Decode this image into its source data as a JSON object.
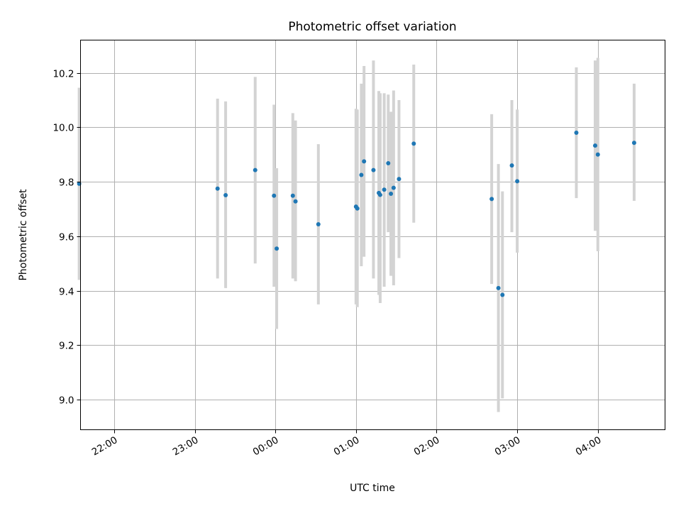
{
  "chart_data": {
    "type": "scatter",
    "title": "Photometric offset variation",
    "xlabel": "UTC time",
    "ylabel": "Photometric offset",
    "x_axis": "time (UTC, hours; values past 24 are after midnight)",
    "xlim": [
      "21:35",
      "04:50"
    ],
    "ylim": [
      8.89,
      10.32
    ],
    "xticks": [
      "22:00",
      "23:00",
      "00:00",
      "01:00",
      "02:00",
      "03:00",
      "04:00"
    ],
    "yticks": [
      "9.0",
      "9.2",
      "9.4",
      "9.6",
      "9.8",
      "10.0",
      "10.2"
    ],
    "grid": true,
    "colors": {
      "points": "#1f77b4",
      "error_bars": "#d3d3d3"
    },
    "points": [
      {
        "x": "21:34",
        "y": 9.793,
        "ylow": 9.44,
        "yhigh": 10.145
      },
      {
        "x": "23:17",
        "y": 9.775,
        "ylow": 9.445,
        "yhigh": 10.105
      },
      {
        "x": "23:23",
        "y": 9.751,
        "ylow": 9.41,
        "yhigh": 10.095
      },
      {
        "x": "23:45",
        "y": 9.843,
        "ylow": 9.5,
        "yhigh": 10.185
      },
      {
        "x": "23:59",
        "y": 9.749,
        "ylow": 9.415,
        "yhigh": 10.083
      },
      {
        "x": "00:01",
        "y": 9.555,
        "ylow": 9.26,
        "yhigh": 9.85
      },
      {
        "x": "00:13",
        "y": 9.749,
        "ylow": 9.445,
        "yhigh": 10.052
      },
      {
        "x": "00:15",
        "y": 9.728,
        "ylow": 9.435,
        "yhigh": 10.025
      },
      {
        "x": "00:32",
        "y": 9.644,
        "ylow": 9.35,
        "yhigh": 9.938
      },
      {
        "x": "01:00",
        "y": 9.709,
        "ylow": 9.35,
        "yhigh": 10.068
      },
      {
        "x": "01:01",
        "y": 9.702,
        "ylow": 9.34,
        "yhigh": 10.065
      },
      {
        "x": "01:04",
        "y": 9.825,
        "ylow": 9.49,
        "yhigh": 10.16
      },
      {
        "x": "01:06",
        "y": 9.875,
        "ylow": 9.525,
        "yhigh": 10.225
      },
      {
        "x": "01:13",
        "y": 9.843,
        "ylow": 9.445,
        "yhigh": 10.245
      },
      {
        "x": "01:17",
        "y": 9.759,
        "ylow": 9.385,
        "yhigh": 10.133
      },
      {
        "x": "01:18",
        "y": 9.752,
        "ylow": 9.355,
        "yhigh": 10.125
      },
      {
        "x": "01:21",
        "y": 9.771,
        "ylow": 9.415,
        "yhigh": 10.125
      },
      {
        "x": "01:24",
        "y": 9.868,
        "ylow": 9.615,
        "yhigh": 10.12
      },
      {
        "x": "01:26",
        "y": 9.756,
        "ylow": 9.455,
        "yhigh": 10.057
      },
      {
        "x": "01:28",
        "y": 9.778,
        "ylow": 9.42,
        "yhigh": 10.135
      },
      {
        "x": "01:32",
        "y": 9.81,
        "ylow": 9.52,
        "yhigh": 10.1
      },
      {
        "x": "01:43",
        "y": 9.94,
        "ylow": 9.65,
        "yhigh": 10.23
      },
      {
        "x": "02:41",
        "y": 9.737,
        "ylow": 9.425,
        "yhigh": 10.048
      },
      {
        "x": "02:46",
        "y": 9.41,
        "ylow": 8.955,
        "yhigh": 9.865
      },
      {
        "x": "02:49",
        "y": 9.385,
        "ylow": 9.005,
        "yhigh": 9.765
      },
      {
        "x": "02:56",
        "y": 9.86,
        "ylow": 9.615,
        "yhigh": 10.1
      },
      {
        "x": "03:00",
        "y": 9.802,
        "ylow": 9.54,
        "yhigh": 10.065
      },
      {
        "x": "03:44",
        "y": 9.98,
        "ylow": 9.74,
        "yhigh": 10.22
      },
      {
        "x": "03:58",
        "y": 9.933,
        "ylow": 9.62,
        "yhigh": 10.245
      },
      {
        "x": "04:00",
        "y": 9.9,
        "ylow": 9.545,
        "yhigh": 10.255
      },
      {
        "x": "04:27",
        "y": 9.943,
        "ylow": 9.73,
        "yhigh": 10.16
      }
    ]
  }
}
